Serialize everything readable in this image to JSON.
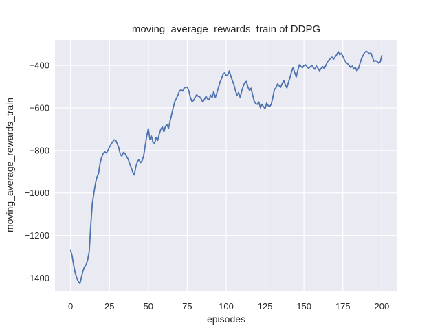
{
  "figure": {
    "background_color": "#ffffff",
    "plot_background_color": "#eaeaf2",
    "grid_color": "#ffffff",
    "text_color": "#262626"
  },
  "chart_data": {
    "type": "line",
    "title": "moving_average_rewards_train of DDPG",
    "xlabel": "episodes",
    "ylabel": "moving_average_rewards_train",
    "xlim": [
      -10,
      210
    ],
    "ylim": [
      -1460,
      -280
    ],
    "x_ticks": [
      0,
      25,
      50,
      75,
      100,
      125,
      150,
      175,
      200
    ],
    "y_ticks": [
      -400,
      -600,
      -800,
      -1000,
      -1200,
      -1400
    ],
    "grid": true,
    "legend_position": "none",
    "series": [
      {
        "name": "DDPG moving average rewards (train)",
        "color": "#4c72b0",
        "x_start": 0,
        "x_step": 1,
        "values": [
          -1268,
          -1295,
          -1340,
          -1375,
          -1400,
          -1416,
          -1425,
          -1398,
          -1365,
          -1348,
          -1337,
          -1315,
          -1275,
          -1150,
          -1050,
          -1000,
          -955,
          -925,
          -908,
          -860,
          -832,
          -814,
          -806,
          -812,
          -800,
          -785,
          -771,
          -760,
          -750,
          -752,
          -768,
          -787,
          -819,
          -827,
          -809,
          -814,
          -828,
          -841,
          -862,
          -882,
          -902,
          -915,
          -875,
          -852,
          -843,
          -857,
          -848,
          -825,
          -776,
          -730,
          -698,
          -748,
          -733,
          -762,
          -766,
          -739,
          -753,
          -724,
          -700,
          -690,
          -712,
          -686,
          -680,
          -696,
          -660,
          -630,
          -598,
          -570,
          -555,
          -540,
          -520,
          -515,
          -521,
          -507,
          -503,
          -502,
          -520,
          -550,
          -570,
          -565,
          -551,
          -538,
          -545,
          -548,
          -558,
          -572,
          -560,
          -545,
          -557,
          -562,
          -540,
          -552,
          -523,
          -552,
          -530,
          -505,
          -480,
          -462,
          -442,
          -435,
          -448,
          -445,
          -426,
          -450,
          -472,
          -490,
          -520,
          -540,
          -527,
          -551,
          -521,
          -497,
          -480,
          -475,
          -502,
          -518,
          -507,
          -539,
          -567,
          -580,
          -583,
          -572,
          -599,
          -583,
          -594,
          -604,
          -577,
          -589,
          -593,
          -583,
          -550,
          -513,
          -505,
          -487,
          -495,
          -503,
          -485,
          -471,
          -490,
          -506,
          -480,
          -458,
          -430,
          -410,
          -432,
          -455,
          -425,
          -397,
          -404,
          -411,
          -400,
          -397,
          -406,
          -414,
          -407,
          -400,
          -410,
          -418,
          -403,
          -414,
          -425,
          -414,
          -405,
          -416,
          -400,
          -384,
          -375,
          -368,
          -361,
          -371,
          -360,
          -350,
          -335,
          -350,
          -343,
          -357,
          -374,
          -385,
          -392,
          -400,
          -410,
          -403,
          -417,
          -409,
          -425,
          -415,
          -390,
          -368,
          -353,
          -339,
          -333,
          -338,
          -346,
          -341,
          -362,
          -381,
          -377,
          -382,
          -389,
          -383,
          -354
        ]
      }
    ]
  }
}
